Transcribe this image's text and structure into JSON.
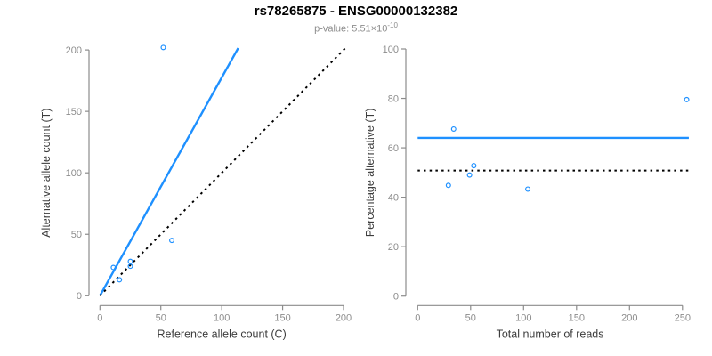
{
  "header": {
    "title": "rs78265875 - ENSG00000132382",
    "subtitle_main": "p-value: 5.51×10",
    "subtitle_exponent": "-10"
  },
  "style": {
    "accent": "#1E90FF",
    "axis_color": "#8c8c8c",
    "tick_label_color": "#8c8c8c",
    "axis_title_color": "#3d3d3d",
    "title_color": "#000000",
    "subtitle_color": "#8c8c8c",
    "point_color": "#1E90FF",
    "dotted_line_color": "#000000",
    "background": "#ffffff"
  },
  "chart_data": [
    {
      "type": "scatter",
      "name": "allele-counts-plot",
      "xlabel": "Reference allele count (C)",
      "ylabel": "Alternative allele count (T)",
      "xlim": [
        0,
        208
      ],
      "ylim": [
        0,
        208
      ],
      "xticks": [
        0,
        50,
        100,
        150,
        200
      ],
      "yticks": [
        0,
        50,
        100,
        150,
        200
      ],
      "grid": false,
      "points": [
        {
          "x": 11,
          "y": 23
        },
        {
          "x": 16,
          "y": 13
        },
        {
          "x": 25,
          "y": 24
        },
        {
          "x": 25,
          "y": 28
        },
        {
          "x": 52,
          "y": 202
        },
        {
          "x": 59,
          "y": 45
        }
      ],
      "lines": [
        {
          "name": "fitted-ratio-line",
          "style": "solid",
          "color": "#1E90FF",
          "x1": 0,
          "y1": 0,
          "x2": 113.5,
          "y2": 201.5
        },
        {
          "name": "identity-line",
          "style": "dotted",
          "color": "#000000",
          "x1": 0,
          "y1": 0,
          "x2": 202,
          "y2": 202
        }
      ]
    },
    {
      "type": "scatter",
      "name": "percentage-alternative-plot",
      "xlabel": "Total number of reads",
      "ylabel": "Percentage alternative (T)",
      "xlim": [
        0,
        256
      ],
      "ylim": [
        0,
        104
      ],
      "xticks": [
        0,
        50,
        100,
        150,
        200,
        250
      ],
      "yticks": [
        0,
        20,
        40,
        60,
        80,
        100
      ],
      "grid": false,
      "points": [
        {
          "x": 34,
          "y": 67.6
        },
        {
          "x": 29,
          "y": 44.8
        },
        {
          "x": 53,
          "y": 52.8
        },
        {
          "x": 49,
          "y": 49.0
        },
        {
          "x": 104,
          "y": 43.3
        },
        {
          "x": 254,
          "y": 79.5
        }
      ],
      "lines": [
        {
          "name": "mean-percentage-line",
          "style": "solid",
          "color": "#1E90FF",
          "x1": 0,
          "y1": 64,
          "x2": 256,
          "y2": 64
        },
        {
          "name": "expected-50-line",
          "style": "dotted",
          "color": "#000000",
          "x1": 0,
          "y1": 50.8,
          "x2": 256,
          "y2": 50.8
        }
      ]
    }
  ]
}
